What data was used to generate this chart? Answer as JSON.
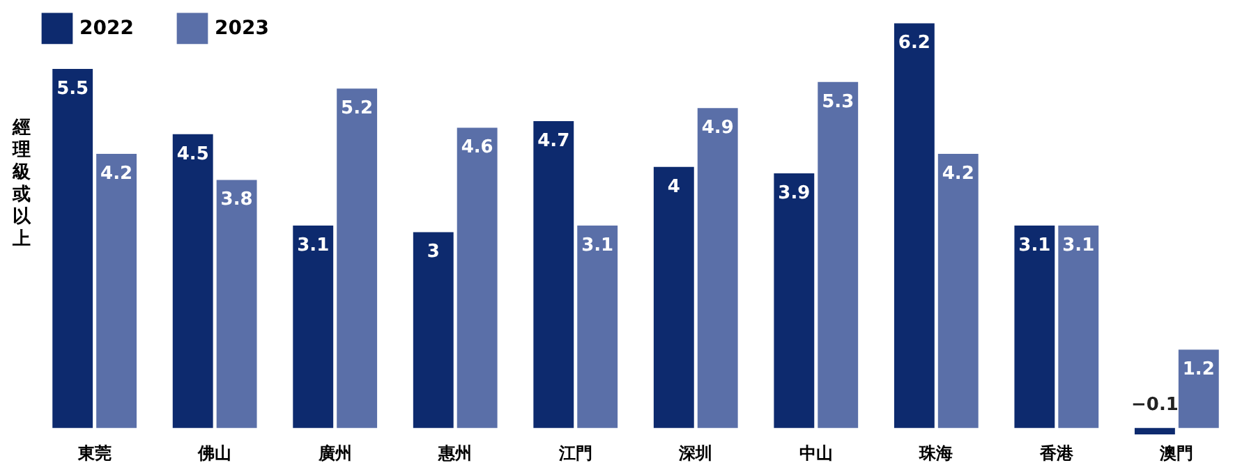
{
  "chart_data": {
    "type": "bar",
    "ylabel": "經理級或以上",
    "categories": [
      "東莞",
      "佛山",
      "廣州",
      "惠州",
      "江門",
      "深圳",
      "中山",
      "珠海",
      "香港",
      "澳門"
    ],
    "series": [
      {
        "name": "2022",
        "color": "#0d2a6e",
        "values": [
          5.5,
          4.5,
          3.1,
          3,
          4.7,
          4,
          3.9,
          6.2,
          3.1,
          -0.1
        ]
      },
      {
        "name": "2023",
        "color": "#5a6fa8",
        "values": [
          4.2,
          3.8,
          5.2,
          4.6,
          3.1,
          4.9,
          5.3,
          4.2,
          3.1,
          1.2
        ]
      }
    ],
    "data_labels": true,
    "legend": "top left",
    "grid": false
  }
}
